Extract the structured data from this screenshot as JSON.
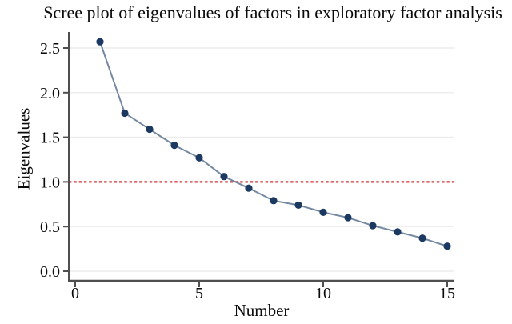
{
  "figure": {
    "title": "Scree plot of eigenvalues of factors in exploratory factor analysis",
    "xlabel": "Number",
    "ylabel": "Eigenvalues"
  },
  "chart_data": {
    "type": "line",
    "title": "Scree plot of eigenvalues of factors in exploratory factor analysis",
    "xlabel": "Number",
    "ylabel": "Eigenvalues",
    "x": [
      1,
      2,
      3,
      4,
      5,
      6,
      7,
      8,
      9,
      10,
      11,
      12,
      13,
      14,
      15
    ],
    "values": [
      2.57,
      1.77,
      1.59,
      1.41,
      1.27,
      1.06,
      0.93,
      0.79,
      0.74,
      0.66,
      0.6,
      0.51,
      0.44,
      0.37,
      0.28
    ],
    "x_ticks": [
      0,
      5,
      10,
      15
    ],
    "x_tick_labels": [
      "0",
      "5",
      "10",
      "15"
    ],
    "y_ticks": [
      0.0,
      0.5,
      1.0,
      1.5,
      2.0,
      2.5
    ],
    "y_tick_labels": [
      "0.0",
      "0.5",
      "1.0",
      "1.5",
      "2.0",
      "2.5"
    ],
    "xlim": [
      0,
      15.3
    ],
    "ylim": [
      0,
      2.7
    ],
    "grid": "horizontal",
    "legend": "none",
    "reference_line": {
      "y": 1.0,
      "style": "dashed"
    },
    "colors": {
      "marker": "#1c3a61",
      "line": "#74889f",
      "reference": "#cf3a3a",
      "grid": "#ececec",
      "axis": "#4f4f4f",
      "text": "#0a0a0a"
    }
  }
}
